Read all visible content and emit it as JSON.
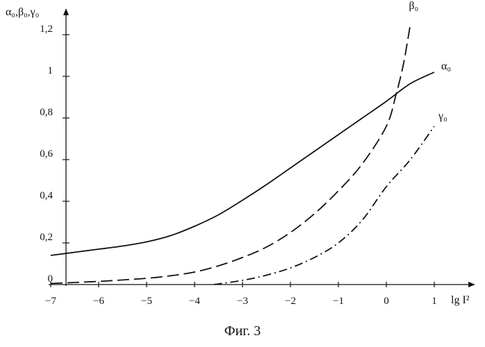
{
  "caption": "Фиг. 3",
  "chart_data": {
    "type": "line",
    "title": "",
    "xlabel": "lg I²",
    "ylabel": "α₀,β₀,γ₀",
    "xlim": [
      -7,
      1.7
    ],
    "ylim": [
      0,
      1.35
    ],
    "x_ticks": [
      -7,
      -6,
      -5,
      -4,
      -3,
      -2,
      -1,
      0,
      1
    ],
    "x_tick_labels": [
      "−7",
      "−6",
      "−5",
      "−4",
      "−3",
      "−2",
      "−1",
      "0",
      "1"
    ],
    "y_ticks": [
      0,
      0.2,
      0.4,
      0.6,
      0.8,
      1,
      1.2
    ],
    "y_tick_labels": [
      "0",
      "0,2",
      "0,4",
      "0,6",
      "0,8",
      "1",
      "1,2"
    ],
    "grid": false,
    "series": [
      {
        "name": "α₀",
        "style": "solid",
        "x": [
          -7,
          -6.5,
          -6,
          -5.5,
          -5,
          -4.5,
          -4,
          -3.5,
          -3,
          -2.5,
          -2,
          -1.5,
          -1,
          -0.5,
          0,
          0.5,
          1
        ],
        "y": [
          0.14,
          0.155,
          0.17,
          0.185,
          0.205,
          0.235,
          0.28,
          0.335,
          0.405,
          0.48,
          0.56,
          0.64,
          0.72,
          0.8,
          0.88,
          0.965,
          1.02
        ]
      },
      {
        "name": "β₀",
        "style": "dashed",
        "x": [
          -7,
          -6.5,
          -6,
          -5.5,
          -5,
          -4.5,
          -4,
          -3.5,
          -3,
          -2.5,
          -2,
          -1.5,
          -1,
          -0.5,
          0,
          0.2,
          0.35,
          0.45,
          0.5
        ],
        "y": [
          0.005,
          0.01,
          0.015,
          0.022,
          0.03,
          0.042,
          0.06,
          0.09,
          0.13,
          0.18,
          0.25,
          0.34,
          0.45,
          0.58,
          0.76,
          0.91,
          1.05,
          1.18,
          1.25
        ]
      },
      {
        "name": "γ₀",
        "style": "dashdot",
        "x": [
          -3.6,
          -3,
          -2.5,
          -2,
          -1.5,
          -1,
          -0.5,
          0,
          0.5,
          1
        ],
        "y": [
          0.0,
          0.02,
          0.045,
          0.08,
          0.13,
          0.2,
          0.31,
          0.47,
          0.6,
          0.76
        ]
      }
    ]
  }
}
